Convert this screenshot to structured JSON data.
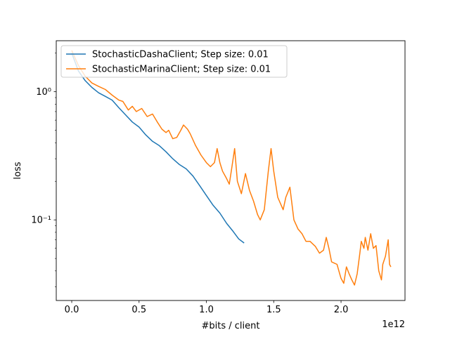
{
  "chart_data": {
    "type": "line",
    "title": "",
    "xlabel": "#bits / client",
    "ylabel": "loss",
    "x_offset_label": "1e12",
    "xscale": "linear",
    "yscale": "log",
    "xlim": [
      -0.115,
      2.475
    ],
    "ylim": [
      0.0235,
      2.5
    ],
    "x_ticks": [
      0.0,
      0.5,
      1.0,
      1.5,
      2.0
    ],
    "x_tick_labels": [
      "0.0",
      "0.5",
      "1.0",
      "1.5",
      "2.0"
    ],
    "y_ticks": [
      0.1,
      1.0
    ],
    "y_tick_labels": [
      "10⁻¹",
      "10⁰"
    ],
    "grid": false,
    "legend_position": "top-left",
    "series": [
      {
        "name": "StochasticDashaClient; Step size: 0.01",
        "color": "#1f77b4",
        "points": [
          [
            0.0,
            2.0
          ],
          [
            0.05,
            1.45
          ],
          [
            0.1,
            1.22
          ],
          [
            0.15,
            1.08
          ],
          [
            0.2,
            0.98
          ],
          [
            0.25,
            0.92
          ],
          [
            0.3,
            0.86
          ],
          [
            0.35,
            0.75
          ],
          [
            0.4,
            0.66
          ],
          [
            0.45,
            0.58
          ],
          [
            0.5,
            0.53
          ],
          [
            0.55,
            0.46
          ],
          [
            0.6,
            0.41
          ],
          [
            0.65,
            0.38
          ],
          [
            0.7,
            0.34
          ],
          [
            0.75,
            0.3
          ],
          [
            0.8,
            0.27
          ],
          [
            0.85,
            0.25
          ],
          [
            0.9,
            0.22
          ],
          [
            0.95,
            0.185
          ],
          [
            1.0,
            0.155
          ],
          [
            1.05,
            0.13
          ],
          [
            1.1,
            0.113
          ],
          [
            1.15,
            0.094
          ],
          [
            1.2,
            0.081
          ],
          [
            1.24,
            0.071
          ],
          [
            1.28,
            0.066
          ]
        ]
      },
      {
        "name": "StochasticMarinaClient; Step size: 0.01",
        "color": "#ff7f0e",
        "points": [
          [
            0.0,
            2.1
          ],
          [
            0.05,
            1.6
          ],
          [
            0.1,
            1.32
          ],
          [
            0.15,
            1.17
          ],
          [
            0.2,
            1.1
          ],
          [
            0.25,
            1.04
          ],
          [
            0.3,
            0.94
          ],
          [
            0.35,
            0.86
          ],
          [
            0.38,
            0.84
          ],
          [
            0.42,
            0.72
          ],
          [
            0.45,
            0.77
          ],
          [
            0.48,
            0.7
          ],
          [
            0.52,
            0.74
          ],
          [
            0.56,
            0.64
          ],
          [
            0.6,
            0.67
          ],
          [
            0.64,
            0.57
          ],
          [
            0.67,
            0.51
          ],
          [
            0.7,
            0.48
          ],
          [
            0.72,
            0.5
          ],
          [
            0.75,
            0.43
          ],
          [
            0.78,
            0.44
          ],
          [
            0.81,
            0.5
          ],
          [
            0.83,
            0.55
          ],
          [
            0.86,
            0.51
          ],
          [
            0.88,
            0.47
          ],
          [
            0.92,
            0.38
          ],
          [
            0.96,
            0.32
          ],
          [
            1.0,
            0.28
          ],
          [
            1.03,
            0.26
          ],
          [
            1.06,
            0.28
          ],
          [
            1.08,
            0.36
          ],
          [
            1.1,
            0.28
          ],
          [
            1.12,
            0.24
          ],
          [
            1.15,
            0.21
          ],
          [
            1.17,
            0.19
          ],
          [
            1.19,
            0.26
          ],
          [
            1.21,
            0.36
          ],
          [
            1.23,
            0.2
          ],
          [
            1.26,
            0.16
          ],
          [
            1.29,
            0.23
          ],
          [
            1.32,
            0.17
          ],
          [
            1.35,
            0.14
          ],
          [
            1.38,
            0.11
          ],
          [
            1.4,
            0.1
          ],
          [
            1.43,
            0.12
          ],
          [
            1.46,
            0.24
          ],
          [
            1.48,
            0.36
          ],
          [
            1.5,
            0.24
          ],
          [
            1.53,
            0.15
          ],
          [
            1.57,
            0.12
          ],
          [
            1.59,
            0.15
          ],
          [
            1.62,
            0.18
          ],
          [
            1.65,
            0.1
          ],
          [
            1.68,
            0.085
          ],
          [
            1.71,
            0.078
          ],
          [
            1.74,
            0.068
          ],
          [
            1.77,
            0.068
          ],
          [
            1.81,
            0.062
          ],
          [
            1.84,
            0.055
          ],
          [
            1.87,
            0.058
          ],
          [
            1.89,
            0.073
          ],
          [
            1.91,
            0.06
          ],
          [
            1.93,
            0.047
          ],
          [
            1.95,
            0.046
          ],
          [
            1.97,
            0.045
          ],
          [
            1.99,
            0.038
          ],
          [
            2.0,
            0.035
          ],
          [
            2.02,
            0.032
          ],
          [
            2.04,
            0.043
          ],
          [
            2.06,
            0.038
          ],
          [
            2.08,
            0.034
          ],
          [
            2.1,
            0.031
          ],
          [
            2.12,
            0.038
          ],
          [
            2.14,
            0.055
          ],
          [
            2.15,
            0.068
          ],
          [
            2.17,
            0.06
          ],
          [
            2.18,
            0.073
          ],
          [
            2.2,
            0.058
          ],
          [
            2.22,
            0.078
          ],
          [
            2.24,
            0.06
          ],
          [
            2.26,
            0.063
          ],
          [
            2.28,
            0.04
          ],
          [
            2.3,
            0.034
          ],
          [
            2.31,
            0.045
          ],
          [
            2.33,
            0.052
          ],
          [
            2.35,
            0.07
          ],
          [
            2.36,
            0.045
          ],
          [
            2.37,
            0.043
          ]
        ]
      }
    ]
  }
}
